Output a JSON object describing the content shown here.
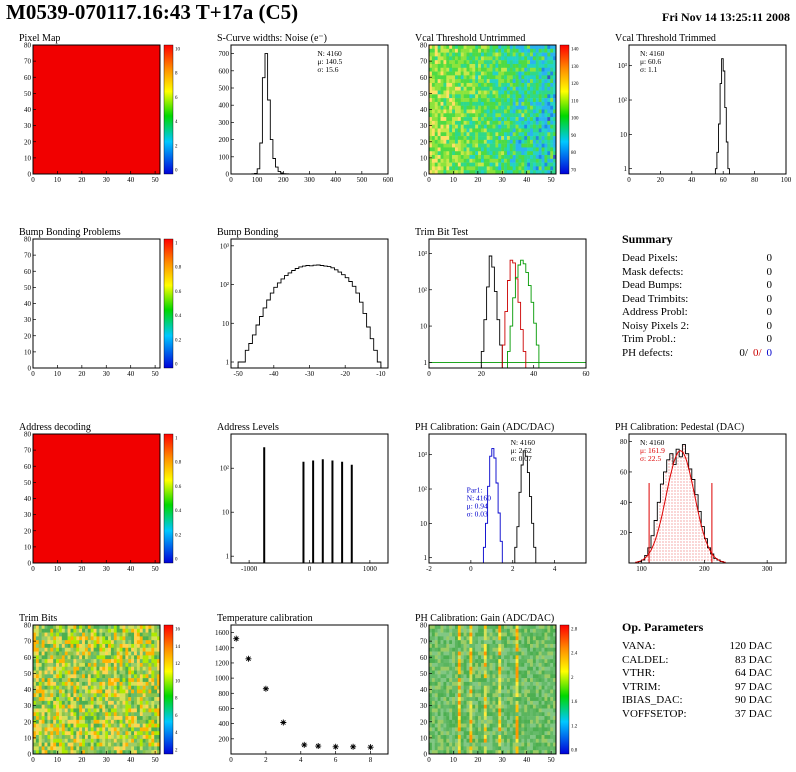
{
  "header": {
    "title": "M0539-070117.16:43 T+17a (C5)",
    "date": "Fri Nov 14 13:25:11 2008"
  },
  "colors": {
    "defect_red": "#cc0000",
    "defect_blue": "#0000cc",
    "map_red": "#f10000"
  },
  "summary": {
    "title": "Summary",
    "rows": [
      {
        "label": "Dead Pixels:",
        "value": "0"
      },
      {
        "label": "Mask defects:",
        "value": "0"
      },
      {
        "label": "Dead Bumps:",
        "value": "0"
      },
      {
        "label": "Dead Trimbits:",
        "value": "0"
      },
      {
        "label": "Address Probl:",
        "value": "0"
      },
      {
        "label": "Noisy Pixels 2:",
        "value": "0"
      },
      {
        "label": "Trim Probl.:",
        "value": "0"
      }
    ],
    "ph_row": {
      "label": "PH defects:",
      "values": [
        "0/",
        "0/",
        "0"
      ]
    }
  },
  "op_params": {
    "title": "Op. Parameters",
    "rows": [
      {
        "label": "VANA:",
        "value": "120 DAC"
      },
      {
        "label": "CALDEL:",
        "value": "83 DAC"
      },
      {
        "label": "VTHR:",
        "value": "64 DAC"
      },
      {
        "label": "VTRIM:",
        "value": "97 DAC"
      },
      {
        "label": "IBIAS_DAC:",
        "value": "90 DAC"
      },
      {
        "label": "VOFFSETOP:",
        "value": "37 DAC"
      }
    ]
  },
  "chart_data": [
    {
      "name": "pixel-map",
      "type": "heatmap",
      "title": "Pixel Map",
      "xlim": [
        0,
        52
      ],
      "ylim": [
        0,
        80
      ],
      "x_ticks": [
        0,
        10,
        20,
        30,
        40,
        50
      ],
      "y_ticks": [
        0,
        10,
        20,
        30,
        40,
        50,
        60,
        70,
        80
      ],
      "pattern": "solid",
      "base": "#f10000",
      "colorbar": {
        "labels": [
          "10",
          "8",
          "6",
          "4",
          "2",
          "0"
        ]
      }
    },
    {
      "name": "scurve-noise",
      "type": "hist",
      "title": "S-Curve widths: Noise (e⁻)",
      "xlim": [
        0,
        600
      ],
      "ylim": [
        0,
        750
      ],
      "x_ticks": [
        0,
        100,
        200,
        300,
        400,
        500,
        600
      ],
      "y_ticks": [
        0,
        100,
        200,
        300,
        400,
        500,
        600,
        700
      ],
      "series": [
        {
          "color": "#000000",
          "x0": 80,
          "dx": 10,
          "values": [
            1,
            3,
            30,
            180,
            560,
            700,
            430,
            200,
            90,
            40,
            15,
            6,
            2,
            1
          ]
        }
      ],
      "stats": [
        {
          "fx": 0.55,
          "fy": 0.03,
          "lines": [
            {
              "t": "N: 4160",
              "c": "#000000"
            },
            {
              "t": "μ: 140.5",
              "c": "#000000"
            },
            {
              "t": "σ: 15.6",
              "c": "#000000"
            }
          ]
        }
      ]
    },
    {
      "name": "vcal-threshold-untrimmed",
      "type": "heatmap",
      "title": "Vcal Threshold Untrimmed",
      "xlim": [
        0,
        52
      ],
      "ylim": [
        0,
        80
      ],
      "x_ticks": [
        0,
        10,
        20,
        30,
        40,
        50
      ],
      "y_ticks": [
        0,
        10,
        20,
        30,
        40,
        50,
        60,
        70,
        80
      ],
      "pattern": "noise",
      "seed": 7,
      "bias": true,
      "colors": [
        "#ffe066",
        "#c6e84a",
        "#8ce33c",
        "#4ddb44",
        "#2fd98a",
        "#23d3c8",
        "#2bb3f0",
        "#1e88e5",
        "#3358c8"
      ],
      "colorbar": {
        "labels": [
          "140",
          "130",
          "120",
          "110",
          "100",
          "90",
          "80",
          "70"
        ]
      }
    },
    {
      "name": "vcal-threshold-trimmed",
      "type": "hist",
      "title": "Vcal Threshold Trimmed",
      "xlim": [
        0,
        100
      ],
      "ylog": true,
      "ylim": [
        0.7,
        4000
      ],
      "x_ticks": [
        0,
        20,
        40,
        60,
        80,
        100
      ],
      "y_ticks": [
        1,
        10,
        100,
        1000
      ],
      "series": [
        {
          "color": "#000000",
          "x0": 55,
          "dx": 1,
          "values": [
            1,
            3,
            20,
            300,
            1600,
            700,
            60,
            6,
            1
          ]
        }
      ],
      "stats": [
        {
          "fx": 0.07,
          "fy": 0.03,
          "lines": [
            {
              "t": "N: 4160",
              "c": "#000000"
            },
            {
              "t": "μ: 60.6",
              "c": "#000000"
            },
            {
              "t": "σ: 1.1",
              "c": "#000000"
            }
          ]
        }
      ]
    },
    {
      "name": "bump-bonding-problems",
      "type": "heatmap",
      "title": "Bump Bonding Problems",
      "xlim": [
        0,
        52
      ],
      "ylim": [
        0,
        80
      ],
      "x_ticks": [
        0,
        10,
        20,
        30,
        40,
        50
      ],
      "y_ticks": [
        0,
        10,
        20,
        30,
        40,
        50,
        60,
        70,
        80
      ],
      "pattern": "empty",
      "colorbar": {
        "labels": [
          "1",
          "0.8",
          "0.6",
          "0.4",
          "0.2",
          "0"
        ]
      }
    },
    {
      "name": "bump-bonding",
      "type": "hist",
      "title": "Bump Bonding",
      "xlim": [
        -52,
        -8
      ],
      "ylog": true,
      "ylim": [
        0.7,
        1500
      ],
      "x_ticks": [
        -50,
        -40,
        -30,
        -20,
        -10
      ],
      "y_ticks": [
        1,
        10,
        100,
        1000
      ],
      "series": [
        {
          "color": "#000000",
          "x0": -50,
          "dx": 1,
          "values": [
            1,
            1,
            2,
            3,
            5,
            9,
            15,
            25,
            40,
            60,
            85,
            110,
            140,
            170,
            200,
            230,
            260,
            285,
            300,
            310,
            305,
            315,
            320,
            310,
            300,
            290,
            270,
            240,
            210,
            180,
            150,
            120,
            90,
            60,
            35,
            18,
            8,
            4,
            2,
            1
          ]
        }
      ]
    },
    {
      "name": "trim-bit-test",
      "type": "hist",
      "title": "Trim Bit Test",
      "xlim": [
        0,
        60
      ],
      "ylog": true,
      "ylim": [
        0.7,
        2500
      ],
      "x_ticks": [
        0,
        20,
        40,
        60
      ],
      "y_ticks": [
        1,
        10,
        100,
        1000
      ],
      "series": [
        {
          "color": "#009900",
          "x0": 0,
          "dx": 60,
          "values": [
            1
          ]
        },
        {
          "color": "#000000",
          "x0": 20,
          "dx": 1,
          "values": [
            2,
            15,
            120,
            850,
            420,
            90,
            15,
            3
          ]
        },
        {
          "color": "#cc0000",
          "x0": 28,
          "dx": 1,
          "values": [
            3,
            25,
            180,
            650,
            550,
            200,
            45,
            8,
            2
          ]
        },
        {
          "color": "#009900",
          "x0": 30,
          "dx": 1,
          "values": [
            2,
            10,
            60,
            220,
            480,
            650,
            520,
            300,
            130,
            45,
            12,
            3
          ]
        }
      ]
    },
    {
      "name": "address-decoding",
      "type": "heatmap",
      "title": "Address decoding",
      "xlim": [
        0,
        52
      ],
      "ylim": [
        0,
        80
      ],
      "x_ticks": [
        0,
        10,
        20,
        30,
        40,
        50
      ],
      "y_ticks": [
        0,
        10,
        20,
        30,
        40,
        50,
        60,
        70,
        80
      ],
      "pattern": "solid",
      "base": "#f10000",
      "colorbar": {
        "labels": [
          "1",
          "0.8",
          "0.6",
          "0.4",
          "0.2",
          "0"
        ]
      }
    },
    {
      "name": "address-levels",
      "type": "spikes",
      "title": "Address Levels",
      "xlim": [
        -1300,
        1300
      ],
      "ylog": true,
      "ylim": [
        0.7,
        600
      ],
      "x_ticks": [
        -1000,
        0,
        1000
      ],
      "y_ticks": [
        1,
        10,
        100
      ],
      "spikes": [
        [
          -750,
          300
        ],
        [
          -100,
          140
        ],
        [
          60,
          150
        ],
        [
          220,
          160
        ],
        [
          380,
          150
        ],
        [
          540,
          140
        ],
        [
          700,
          120
        ]
      ]
    },
    {
      "name": "ph-calibration-gain-hist",
      "type": "hist",
      "title": "PH Calibration: Gain (ADC/DAC)",
      "xlim": [
        -2,
        5.5
      ],
      "ylog": true,
      "ylim": [
        0.7,
        4000
      ],
      "x_ticks": [
        -2,
        0,
        2,
        4
      ],
      "y_ticks": [
        1,
        10,
        100,
        1000
      ],
      "series": [
        {
          "color": "#0000cc",
          "x0": 0.6,
          "dx": 0.1,
          "values": [
            2,
            10,
            120,
            900,
            1500,
            800,
            150,
            20,
            3
          ]
        },
        {
          "color": "#000000",
          "x0": 2.1,
          "dx": 0.1,
          "values": [
            2,
            8,
            80,
            500,
            1300,
            900,
            300,
            60,
            10,
            2
          ]
        }
      ],
      "stats": [
        {
          "fx": 0.52,
          "fy": 0.03,
          "lines": [
            {
              "t": "N: 4160",
              "c": "#000000"
            },
            {
              "t": "μ: 2.52",
              "c": "#000000"
            },
            {
              "t": "σ: 0.07",
              "c": "#000000"
            }
          ]
        },
        {
          "fx": 0.24,
          "fy": 0.4,
          "lines": [
            {
              "t": "Par1:",
              "c": "#0000cc"
            },
            {
              "t": "N: 4160",
              "c": "#0000cc"
            },
            {
              "t": "μ: 0.94",
              "c": "#0000cc"
            },
            {
              "t": "σ: 0.03",
              "c": "#0000cc"
            }
          ]
        }
      ]
    },
    {
      "name": "ph-calibration-pedestal",
      "type": "hist",
      "title": "PH Calibration: Pedestal (DAC)",
      "xlim": [
        80,
        330
      ],
      "ylim": [
        0,
        85
      ],
      "x_ticks": [
        100,
        200,
        300
      ],
      "y_ticks": [
        20,
        40,
        60,
        80
      ],
      "series": [
        {
          "color": "#000000",
          "fill": "hatch",
          "x0": 95,
          "dx": 5,
          "values": [
            1,
            2,
            5,
            10,
            18,
            28,
            40,
            52,
            60,
            68,
            72,
            65,
            75,
            70,
            78,
            72,
            62,
            55,
            45,
            34,
            24,
            16,
            10,
            6,
            3,
            2,
            1
          ]
        }
      ],
      "gauss": {
        "mu": 161.9,
        "sigma": 22.5,
        "amp": 74,
        "color": "#dd0000"
      },
      "vlines": [
        {
          "x": 112,
          "color": "#dd0000",
          "f": 0.62
        },
        {
          "x": 212,
          "color": "#dd0000",
          "f": 0.62
        }
      ],
      "stats": [
        {
          "fx": 0.07,
          "fy": 0.03,
          "lines": [
            {
              "t": "N: 4160",
              "c": "#000000"
            },
            {
              "t": "μ: 161.9",
              "c": "#dd0000"
            },
            {
              "t": "σ: 22.5",
              "c": "#dd0000"
            }
          ]
        }
      ]
    },
    {
      "name": "trim-bits-map",
      "type": "heatmap",
      "title": "Trim Bits",
      "xlim": [
        0,
        52
      ],
      "ylim": [
        0,
        80
      ],
      "x_ticks": [
        0,
        10,
        20,
        30,
        40,
        50
      ],
      "y_ticks": [
        0,
        10,
        20,
        30,
        40,
        50,
        60,
        70,
        80
      ],
      "pattern": "noise",
      "seed": 13,
      "bias": false,
      "colors": [
        "#ffb300",
        "#ffd54f",
        "#d4e157",
        "#aeea00",
        "#9ccc65",
        "#66bb6a",
        "#4caf50",
        "#8bc34a"
      ],
      "colorbar": {
        "labels": [
          "16",
          "14",
          "12",
          "10",
          "8",
          "6",
          "4",
          "2"
        ]
      }
    },
    {
      "name": "temperature-calibration",
      "type": "scatter",
      "title": "Temperature calibration",
      "xlim": [
        0,
        9
      ],
      "ylim": [
        0,
        1700
      ],
      "x_ticks": [
        0,
        2,
        4,
        6,
        8
      ],
      "y_ticks": [
        200,
        400,
        600,
        800,
        1000,
        1200,
        1400,
        1600
      ],
      "points": [
        [
          0.3,
          1520
        ],
        [
          1,
          1255
        ],
        [
          2,
          860
        ],
        [
          3,
          415
        ],
        [
          4.2,
          120
        ],
        [
          5,
          105
        ],
        [
          6,
          95
        ],
        [
          7,
          95
        ],
        [
          8,
          90
        ]
      ]
    },
    {
      "name": "ph-calibration-gain-map",
      "type": "heatmap",
      "title": "PH Calibration: Gain (ADC/DAC)",
      "xlim": [
        0,
        52
      ],
      "ylim": [
        0,
        80
      ],
      "x_ticks": [
        0,
        10,
        20,
        30,
        40,
        50
      ],
      "y_ticks": [
        0,
        10,
        20,
        30,
        40,
        50,
        60,
        70,
        80
      ],
      "pattern": "stripes",
      "seed": 21,
      "colors": [
        "#66bb6a",
        "#4caf50",
        "#81c784",
        "#9ccc65",
        "#5ab55e"
      ],
      "stripe_colors": [
        "#ffeb3b",
        "#ffc107",
        "#ff9800",
        "#d4e157"
      ],
      "colorbar": {
        "labels": [
          "2.8",
          "2.4",
          "2",
          "1.6",
          "1.2",
          "0.8"
        ]
      }
    }
  ]
}
